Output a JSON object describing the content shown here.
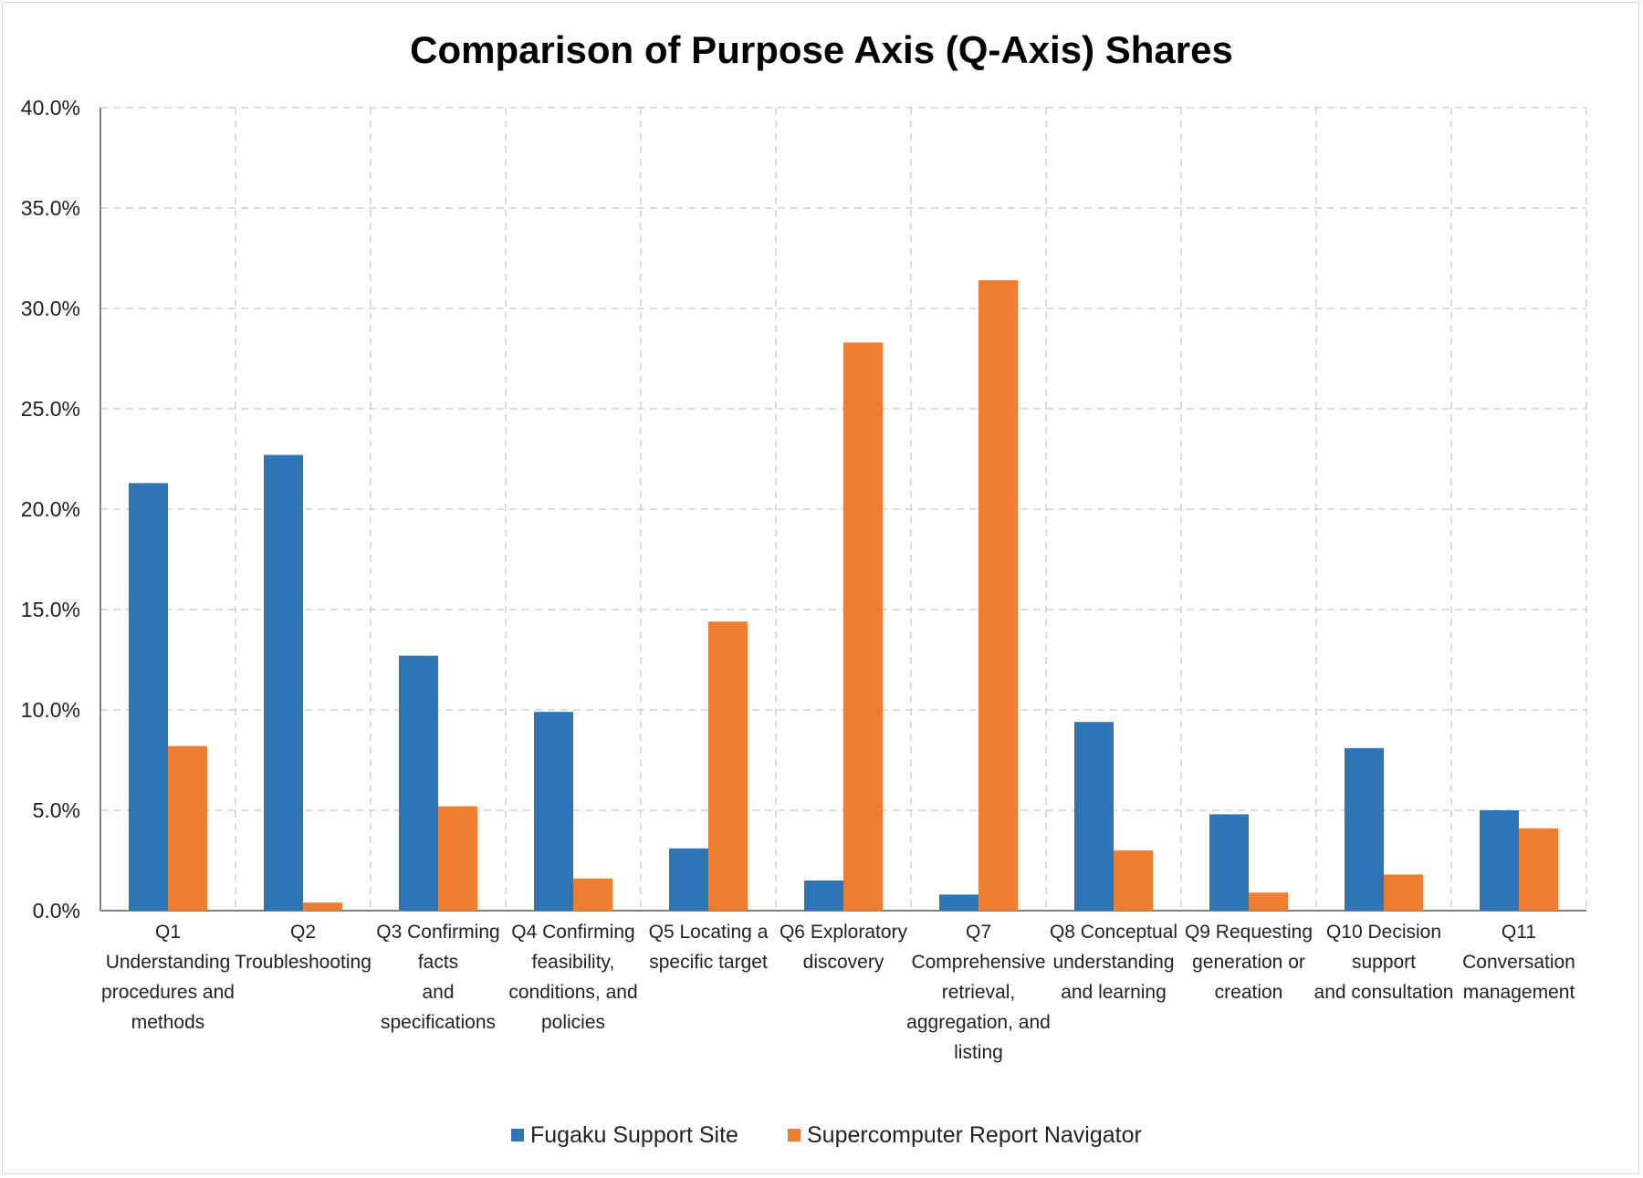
{
  "chart_data": {
    "type": "bar",
    "title": "Comparison of Purpose Axis (Q-Axis) Shares",
    "xlabel": "",
    "ylabel": "",
    "ylim": [
      0,
      40
    ],
    "y_ticks": [
      "0.0%",
      "5.0%",
      "10.0%",
      "15.0%",
      "20.0%",
      "25.0%",
      "30.0%",
      "35.0%",
      "40.0%"
    ],
    "grid": true,
    "legend_position": "bottom",
    "categories": [
      [
        "Q1",
        "Understanding",
        "procedures and",
        "methods"
      ],
      [
        "Q2",
        "Troubleshooting"
      ],
      [
        "Q3 Confirming",
        "facts",
        "and",
        "specifications"
      ],
      [
        "Q4 Confirming",
        "feasibility,",
        "conditions, and",
        "policies"
      ],
      [
        "Q5 Locating a",
        "specific target"
      ],
      [
        "Q6 Exploratory",
        "discovery"
      ],
      [
        "Q7",
        "Comprehensive",
        "retrieval,",
        "aggregation, and",
        "listing"
      ],
      [
        "Q8 Conceptual",
        "understanding",
        "and learning"
      ],
      [
        "Q9 Requesting",
        "generation or",
        "creation"
      ],
      [
        "Q10 Decision",
        "support",
        "and consultation"
      ],
      [
        "Q11",
        "Conversation",
        "management"
      ]
    ],
    "series": [
      {
        "name": "Fugaku Support Site",
        "color": "#2e75b6",
        "values": [
          21.3,
          22.7,
          12.7,
          9.9,
          3.1,
          1.5,
          0.8,
          9.4,
          4.8,
          8.1,
          5.0
        ]
      },
      {
        "name": "Supercomputer Report Navigator",
        "color": "#ed7d31",
        "values": [
          8.2,
          0.4,
          5.2,
          1.6,
          14.4,
          28.3,
          31.4,
          3.0,
          0.9,
          1.8,
          4.1
        ]
      }
    ]
  }
}
